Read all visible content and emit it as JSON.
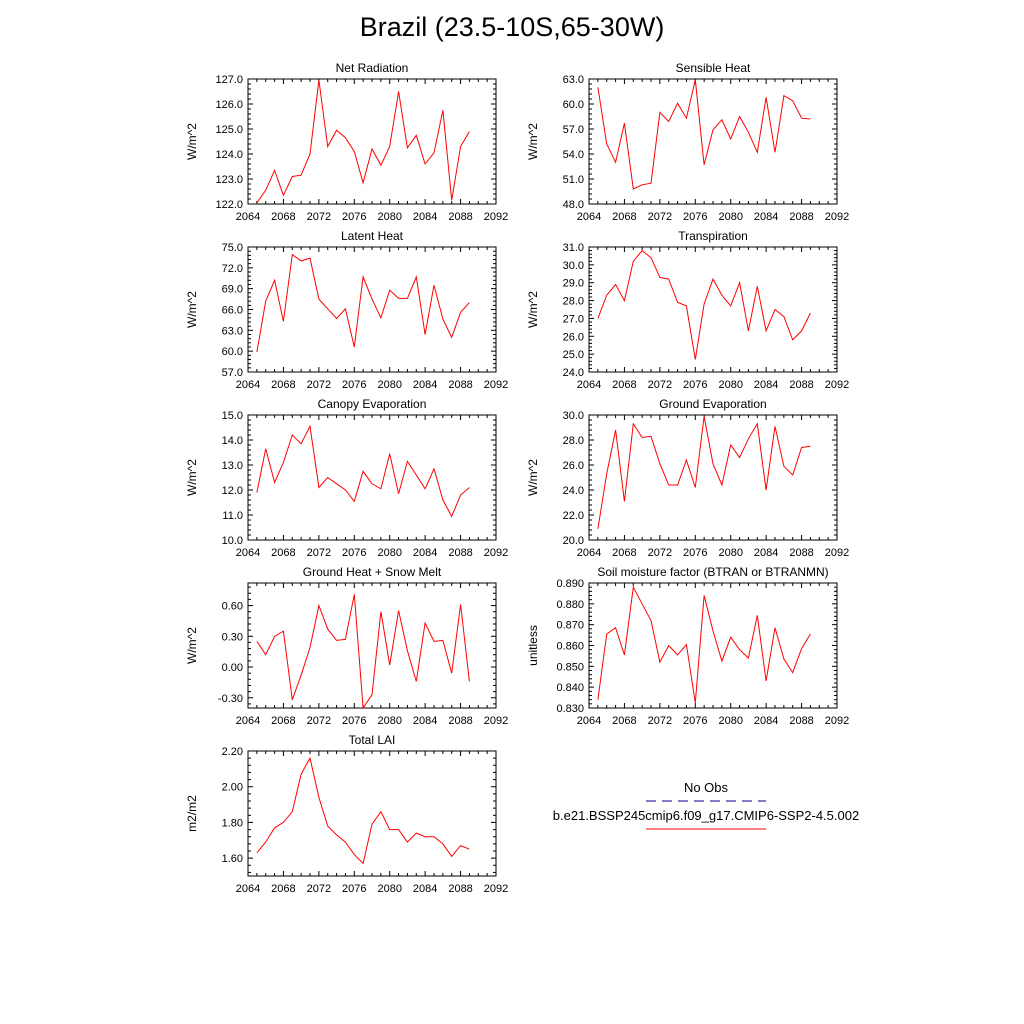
{
  "title": "Brazil (23.5-10S,65-30W)",
  "colors": {
    "model_line": "#ff0000",
    "obs_line": "#00008b",
    "axis": "#000000"
  },
  "legend": {
    "obs_label": "No Obs",
    "model_label": "b.e21.BSSP245cmip6.f09_g17.CMIP6-SSP2-4.5.002"
  },
  "chart_data": [
    {
      "type": "line",
      "title": "Net Radiation",
      "ylabel": "W/m^2",
      "xlim": [
        2064,
        2092
      ],
      "ylim": [
        122.0,
        127.0
      ],
      "xticks": [
        2064,
        2068,
        2072,
        2076,
        2080,
        2084,
        2088,
        2092
      ],
      "xtick_labels": [
        "2064",
        "2068",
        "2072",
        "2076",
        "2080",
        "2084",
        "2088",
        "2092"
      ],
      "yticks": [
        122.0,
        123.0,
        124.0,
        125.0,
        126.0,
        127.0
      ],
      "ytick_labels": [
        "122.0",
        "123.0",
        "124.0",
        "125.0",
        "126.0",
        "127.0"
      ],
      "x": [
        2065,
        2066,
        2067,
        2068,
        2069,
        2070,
        2071,
        2072,
        2073,
        2074,
        2075,
        2076,
        2077,
        2078,
        2079,
        2080,
        2081,
        2082,
        2083,
        2084,
        2085,
        2086,
        2087,
        2088,
        2089
      ],
      "y": [
        122.05,
        122.55,
        123.35,
        122.35,
        123.1,
        123.15,
        124.0,
        126.95,
        124.3,
        124.95,
        124.65,
        124.1,
        122.85,
        124.2,
        123.55,
        124.3,
        126.5,
        124.25,
        124.75,
        123.6,
        124.05,
        125.75,
        122.15,
        124.3,
        124.9
      ]
    },
    {
      "type": "line",
      "title": "Sensible Heat",
      "ylabel": "W/m^2",
      "xlim": [
        2064,
        2092
      ],
      "ylim": [
        48.0,
        63.0
      ],
      "xticks": [
        2064,
        2068,
        2072,
        2076,
        2080,
        2084,
        2088,
        2092
      ],
      "xtick_labels": [
        "2064",
        "2068",
        "2072",
        "2076",
        "2080",
        "2084",
        "2088",
        "2092"
      ],
      "yticks": [
        48.0,
        51.0,
        54.0,
        57.0,
        60.0,
        63.0
      ],
      "ytick_labels": [
        "48.0",
        "51.0",
        "54.0",
        "57.0",
        "60.0",
        "63.0"
      ],
      "x": [
        2065,
        2066,
        2067,
        2068,
        2069,
        2070,
        2071,
        2072,
        2073,
        2074,
        2075,
        2076,
        2077,
        2078,
        2079,
        2080,
        2081,
        2082,
        2083,
        2084,
        2085,
        2086,
        2087,
        2088,
        2089
      ],
      "y": [
        62.0,
        55.2,
        53.0,
        57.7,
        49.8,
        50.3,
        50.5,
        59.0,
        57.9,
        60.1,
        58.3,
        62.9,
        52.7,
        56.9,
        58.1,
        55.8,
        58.5,
        56.6,
        54.2,
        60.8,
        54.2,
        61.0,
        60.4,
        58.3,
        58.2
      ]
    },
    {
      "type": "line",
      "title": "Latent Heat",
      "ylabel": "W/m^2",
      "xlim": [
        2064,
        2092
      ],
      "ylim": [
        57.0,
        75.0
      ],
      "xticks": [
        2064,
        2068,
        2072,
        2076,
        2080,
        2084,
        2088,
        2092
      ],
      "xtick_labels": [
        "2064",
        "2068",
        "2072",
        "2076",
        "2080",
        "2084",
        "2088",
        "2092"
      ],
      "yticks": [
        57.0,
        60.0,
        63.0,
        66.0,
        69.0,
        72.0,
        75.0
      ],
      "ytick_labels": [
        "57.0",
        "60.0",
        "63.0",
        "66.0",
        "69.0",
        "72.0",
        "75.0"
      ],
      "x": [
        2065,
        2066,
        2067,
        2068,
        2069,
        2070,
        2071,
        2072,
        2073,
        2074,
        2075,
        2076,
        2077,
        2078,
        2079,
        2080,
        2081,
        2082,
        2083,
        2084,
        2085,
        2086,
        2087,
        2088,
        2089
      ],
      "y": [
        59.9,
        67.2,
        70.2,
        64.3,
        73.9,
        73.0,
        73.4,
        67.5,
        66.1,
        64.7,
        66.1,
        60.6,
        70.7,
        67.5,
        64.8,
        68.8,
        67.6,
        67.6,
        70.7,
        62.4,
        69.5,
        64.6,
        62.0,
        65.6,
        67.0
      ]
    },
    {
      "type": "line",
      "title": "Transpiration",
      "ylabel": "W/m^2",
      "xlim": [
        2064,
        2092
      ],
      "ylim": [
        24.0,
        31.0
      ],
      "xticks": [
        2064,
        2068,
        2072,
        2076,
        2080,
        2084,
        2088,
        2092
      ],
      "xtick_labels": [
        "2064",
        "2068",
        "2072",
        "2076",
        "2080",
        "2084",
        "2088",
        "2092"
      ],
      "yticks": [
        24.0,
        25.0,
        26.0,
        27.0,
        28.0,
        29.0,
        30.0,
        31.0
      ],
      "ytick_labels": [
        "24.0",
        "25.0",
        "26.0",
        "27.0",
        "28.0",
        "29.0",
        "30.0",
        "31.0"
      ],
      "x": [
        2065,
        2066,
        2067,
        2068,
        2069,
        2070,
        2071,
        2072,
        2073,
        2074,
        2075,
        2076,
        2077,
        2078,
        2079,
        2080,
        2081,
        2082,
        2083,
        2084,
        2085,
        2086,
        2087,
        2088,
        2089
      ],
      "y": [
        27.0,
        28.3,
        28.9,
        28.0,
        30.2,
        30.8,
        30.4,
        29.3,
        29.2,
        27.9,
        27.7,
        24.7,
        27.8,
        29.2,
        28.3,
        27.7,
        29.0,
        26.3,
        28.8,
        26.3,
        27.5,
        27.1,
        25.8,
        26.3,
        27.3
      ]
    },
    {
      "type": "line",
      "title": "Canopy Evaporation",
      "ylabel": "W/m^2",
      "xlim": [
        2064,
        2092
      ],
      "ylim": [
        10.0,
        15.0
      ],
      "xticks": [
        2064,
        2068,
        2072,
        2076,
        2080,
        2084,
        2088,
        2092
      ],
      "xtick_labels": [
        "2064",
        "2068",
        "2072",
        "2076",
        "2080",
        "2084",
        "2088",
        "2092"
      ],
      "yticks": [
        10.0,
        11.0,
        12.0,
        13.0,
        14.0,
        15.0
      ],
      "ytick_labels": [
        "10.0",
        "11.0",
        "12.0",
        "13.0",
        "14.0",
        "15.0"
      ],
      "x": [
        2065,
        2066,
        2067,
        2068,
        2069,
        2070,
        2071,
        2072,
        2073,
        2074,
        2075,
        2076,
        2077,
        2078,
        2079,
        2080,
        2081,
        2082,
        2083,
        2084,
        2085,
        2086,
        2087,
        2088,
        2089
      ],
      "y": [
        11.9,
        13.65,
        12.3,
        13.1,
        14.2,
        13.85,
        14.55,
        12.1,
        12.5,
        12.25,
        12.0,
        11.55,
        12.75,
        12.25,
        12.05,
        13.45,
        11.85,
        13.15,
        12.6,
        12.05,
        12.85,
        11.6,
        10.95,
        11.8,
        12.1
      ]
    },
    {
      "type": "line",
      "title": "Ground Evaporation",
      "ylabel": "W/m^2",
      "xlim": [
        2064,
        2092
      ],
      "ylim": [
        20.0,
        30.0
      ],
      "xticks": [
        2064,
        2068,
        2072,
        2076,
        2080,
        2084,
        2088,
        2092
      ],
      "xtick_labels": [
        "2064",
        "2068",
        "2072",
        "2076",
        "2080",
        "2084",
        "2088",
        "2092"
      ],
      "yticks": [
        20.0,
        22.0,
        24.0,
        26.0,
        28.0,
        30.0
      ],
      "ytick_labels": [
        "20.0",
        "22.0",
        "24.0",
        "26.0",
        "28.0",
        "30.0"
      ],
      "x": [
        2065,
        2066,
        2067,
        2068,
        2069,
        2070,
        2071,
        2072,
        2073,
        2074,
        2075,
        2076,
        2077,
        2078,
        2079,
        2080,
        2081,
        2082,
        2083,
        2084,
        2085,
        2086,
        2087,
        2088,
        2089
      ],
      "y": [
        20.9,
        25.3,
        28.8,
        23.1,
        29.3,
        28.2,
        28.3,
        26.1,
        24.4,
        24.4,
        26.4,
        24.2,
        29.9,
        26.1,
        24.4,
        27.6,
        26.6,
        28.1,
        29.3,
        24.0,
        29.1,
        25.9,
        25.2,
        27.4,
        27.5
      ]
    },
    {
      "type": "line",
      "title": "Ground Heat + Snow Melt",
      "ylabel": "W/m^2",
      "xlim": [
        2064,
        2092
      ],
      "ylim": [
        -0.4,
        0.82
      ],
      "xticks": [
        2064,
        2068,
        2072,
        2076,
        2080,
        2084,
        2088,
        2092
      ],
      "xtick_labels": [
        "2064",
        "2068",
        "2072",
        "2076",
        "2080",
        "2084",
        "2088",
        "2092"
      ],
      "yticks": [
        -0.3,
        0.0,
        0.3,
        0.6
      ],
      "ytick_labels": [
        "-0.30",
        "0.00",
        "0.30",
        "0.60"
      ],
      "x": [
        2065,
        2066,
        2067,
        2068,
        2069,
        2070,
        2071,
        2072,
        2073,
        2074,
        2075,
        2076,
        2077,
        2078,
        2079,
        2080,
        2081,
        2082,
        2083,
        2084,
        2085,
        2086,
        2087,
        2088,
        2089
      ],
      "y": [
        0.25,
        0.12,
        0.3,
        0.35,
        -0.32,
        -0.08,
        0.19,
        0.6,
        0.37,
        0.26,
        0.27,
        0.71,
        -0.4,
        -0.27,
        0.54,
        0.02,
        0.55,
        0.16,
        -0.14,
        0.43,
        0.25,
        0.26,
        -0.06,
        0.61,
        -0.14
      ]
    },
    {
      "type": "line",
      "title": "Soil moisture factor (BTRAN or BTRANMN)",
      "ylabel": "unitless",
      "xlim": [
        2064,
        2092
      ],
      "ylim": [
        0.83,
        0.89
      ],
      "xticks": [
        2064,
        2068,
        2072,
        2076,
        2080,
        2084,
        2088,
        2092
      ],
      "xtick_labels": [
        "2064",
        "2068",
        "2072",
        "2076",
        "2080",
        "2084",
        "2088",
        "2092"
      ],
      "yticks": [
        0.83,
        0.84,
        0.85,
        0.86,
        0.87,
        0.88,
        0.89
      ],
      "ytick_labels": [
        "0.830",
        "0.840",
        "0.850",
        "0.860",
        "0.870",
        "0.880",
        "0.890"
      ],
      "x": [
        2065,
        2066,
        2067,
        2068,
        2069,
        2070,
        2071,
        2072,
        2073,
        2074,
        2075,
        2076,
        2077,
        2078,
        2079,
        2080,
        2081,
        2082,
        2083,
        2084,
        2085,
        2086,
        2087,
        2088,
        2089
      ],
      "y": [
        0.834,
        0.8655,
        0.8685,
        0.8555,
        0.888,
        0.88,
        0.872,
        0.852,
        0.86,
        0.8555,
        0.8605,
        0.8325,
        0.884,
        0.867,
        0.8525,
        0.864,
        0.858,
        0.854,
        0.8745,
        0.843,
        0.8685,
        0.8535,
        0.847,
        0.8585,
        0.8655
      ]
    },
    {
      "type": "line",
      "title": "Total LAI",
      "ylabel": "m2/m2",
      "xlim": [
        2064,
        2092
      ],
      "ylim": [
        1.5,
        2.2
      ],
      "xticks": [
        2064,
        2068,
        2072,
        2076,
        2080,
        2084,
        2088,
        2092
      ],
      "xtick_labels": [
        "2064",
        "2068",
        "2072",
        "2076",
        "2080",
        "2084",
        "2088",
        "2092"
      ],
      "yticks": [
        1.6,
        1.8,
        2.0,
        2.2
      ],
      "ytick_labels": [
        "1.60",
        "1.80",
        "2.00",
        "2.20"
      ],
      "x": [
        2065,
        2066,
        2067,
        2068,
        2069,
        2070,
        2071,
        2072,
        2073,
        2074,
        2075,
        2076,
        2077,
        2078,
        2079,
        2080,
        2081,
        2082,
        2083,
        2084,
        2085,
        2086,
        2087,
        2088,
        2089
      ],
      "y": [
        1.63,
        1.69,
        1.77,
        1.8,
        1.86,
        2.07,
        2.16,
        1.94,
        1.78,
        1.73,
        1.69,
        1.62,
        1.57,
        1.79,
        1.86,
        1.76,
        1.76,
        1.69,
        1.74,
        1.72,
        1.72,
        1.68,
        1.61,
        1.67,
        1.65
      ]
    }
  ]
}
